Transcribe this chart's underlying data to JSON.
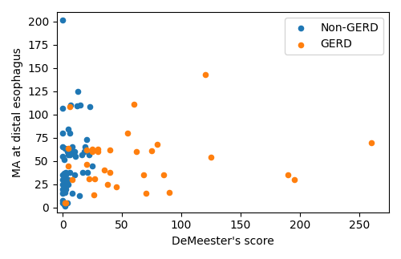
{
  "non_gerd_x": [
    0,
    0,
    0,
    0,
    0,
    0,
    0,
    0,
    0,
    0,
    0,
    0,
    1,
    1,
    1,
    1,
    1,
    2,
    2,
    2,
    2,
    2,
    2,
    3,
    3,
    3,
    3,
    3,
    4,
    4,
    5,
    5,
    5,
    5,
    6,
    6,
    6,
    7,
    7,
    8,
    8,
    9,
    10,
    10,
    11,
    12,
    13,
    14,
    15,
    16,
    17,
    18,
    19,
    20,
    21,
    22,
    23,
    25
  ],
  "non_gerd_y": [
    5,
    8,
    15,
    20,
    25,
    30,
    35,
    55,
    65,
    80,
    107,
    201,
    3,
    18,
    22,
    37,
    52,
    2,
    16,
    20,
    27,
    37,
    64,
    20,
    22,
    30,
    35,
    38,
    5,
    60,
    25,
    30,
    57,
    84,
    38,
    57,
    80,
    58,
    110,
    15,
    65,
    60,
    35,
    60,
    55,
    109,
    125,
    13,
    110,
    57,
    38,
    60,
    65,
    73,
    38,
    57,
    108,
    45
  ],
  "gerd_x": [
    2,
    3,
    5,
    5,
    6,
    8,
    20,
    20,
    22,
    25,
    25,
    26,
    27,
    30,
    30,
    35,
    38,
    40,
    40,
    45,
    55,
    60,
    62,
    68,
    70,
    75,
    80,
    85,
    90,
    120,
    125,
    190,
    195,
    260
  ],
  "gerd_y": [
    5,
    5,
    45,
    64,
    108,
    30,
    46,
    62,
    31,
    60,
    63,
    14,
    31,
    60,
    63,
    40,
    25,
    38,
    62,
    22,
    80,
    111,
    60,
    35,
    15,
    61,
    68,
    35,
    16,
    143,
    54,
    35,
    30,
    70
  ],
  "non_gerd_color": "#1f77b4",
  "gerd_color": "#ff7f0e",
  "xlabel": "DeMeester's score",
  "ylabel": "MA at distal esophagus",
  "xlim": [
    -5,
    275
  ],
  "ylim": [
    -5,
    210
  ],
  "xticks": [
    0,
    50,
    100,
    150,
    200,
    250
  ],
  "yticks": [
    0,
    25,
    50,
    75,
    100,
    125,
    150,
    175,
    200
  ],
  "marker_size": 20,
  "legend_labels": [
    "Non-GERD",
    "GERD"
  ],
  "legend_loc": "upper right"
}
